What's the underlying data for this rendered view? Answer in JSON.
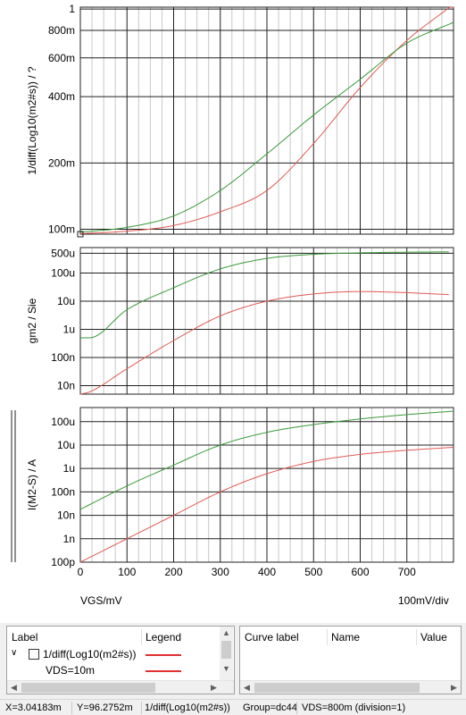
{
  "chart_data": [
    {
      "type": "line",
      "ylabel": "1/diff(Log10(m2#s)) / ?",
      "yscale": "log",
      "ylim": [
        0.095,
        1.02
      ],
      "yticks": [
        {
          "v": 1,
          "label": "1"
        },
        {
          "v": 0.8,
          "label": "800m"
        },
        {
          "v": 0.6,
          "label": "600m"
        },
        {
          "v": 0.4,
          "label": "400m"
        },
        {
          "v": 0.2,
          "label": "200m"
        },
        {
          "v": 0.1,
          "label": "100m"
        }
      ],
      "x": [
        0,
        100,
        200,
        300,
        400,
        500,
        600,
        700,
        800
      ],
      "series": [
        {
          "color": "#e05a52",
          "values": [
            0.0955,
            0.098,
            0.104,
            0.12,
            0.15,
            0.245,
            0.44,
            0.72,
            1.05
          ]
        },
        {
          "color": "#3a9a3a",
          "values": [
            0.097,
            0.102,
            0.115,
            0.15,
            0.22,
            0.33,
            0.48,
            0.7,
            0.87
          ]
        }
      ]
    },
    {
      "type": "line",
      "ylabel": "gm2 / Sie",
      "yscale": "log",
      "ylim": [
        5e-09,
        0.0008
      ],
      "yticks": [
        {
          "v": 0.0005,
          "label": "500u"
        },
        {
          "v": 0.0001,
          "label": "100u"
        },
        {
          "v": 1e-05,
          "label": "10u"
        },
        {
          "v": 1e-06,
          "label": "1u"
        },
        {
          "v": 1e-07,
          "label": "100n"
        },
        {
          "v": 1e-08,
          "label": "10n"
        }
      ],
      "x": [
        0,
        20,
        100,
        200,
        300,
        400,
        500,
        600,
        700,
        790
      ],
      "series": [
        {
          "color": "#e05a52",
          "values": [
            5e-09,
            6e-09,
            4e-08,
            4e-07,
            3e-06,
            1e-05,
            1.8e-05,
            2.2e-05,
            2e-05,
            1.7e-05
          ]
        },
        {
          "color": "#3a9a3a",
          "values": [
            5e-07,
            5e-07,
            5e-06,
            3e-05,
            0.00014,
            0.00033,
            0.00046,
            0.00052,
            0.00055,
            0.00056
          ]
        }
      ]
    },
    {
      "type": "line",
      "ylabel": "I(M2-S) / A",
      "yscale": "log",
      "ylim": [
        1e-10,
        0.0004
      ],
      "yticks": [
        {
          "v": 0.0001,
          "label": "100u"
        },
        {
          "v": 1e-05,
          "label": "10u"
        },
        {
          "v": 1e-06,
          "label": "1u"
        },
        {
          "v": 1e-07,
          "label": "100n"
        },
        {
          "v": 1e-08,
          "label": "10n"
        },
        {
          "v": 1e-09,
          "label": "1n"
        },
        {
          "v": 1e-10,
          "label": "100p"
        }
      ],
      "x": [
        0,
        100,
        200,
        300,
        400,
        500,
        600,
        700,
        800
      ],
      "series": [
        {
          "color": "#e05a52",
          "values": [
            1e-10,
            1e-09,
            1e-08,
            1e-07,
            6e-07,
            2e-06,
            4e-06,
            6e-06,
            8e-06
          ]
        },
        {
          "color": "#3a9a3a",
          "values": [
            1.8e-08,
            1.8e-07,
            1.4e-06,
            1e-05,
            3.5e-05,
            7.5e-05,
            0.00013,
            0.0002,
            0.00028
          ]
        }
      ]
    }
  ],
  "xaxis": {
    "xlim": [
      0,
      800
    ],
    "ticks": [
      "0",
      "100",
      "200",
      "300",
      "400",
      "500",
      "600",
      "700"
    ],
    "label": "VGS/mV",
    "div_label": "100mV/div"
  },
  "legend_panel": {
    "col_label": "Label",
    "col_legend": "Legend",
    "tree_item": "1/diff(Log10(m2#s))",
    "sub_item": "VDS=10m",
    "item_color": "#e03030"
  },
  "curve_panel": {
    "col_curve": "Curve label",
    "col_name": "Name",
    "col_value": "Value"
  },
  "status": {
    "x": "X=3.04183m",
    "y": "Y=96.2752m",
    "expr": "1/diff(Log10(m2#s))",
    "group": "Group=dc44",
    "vds": "VDS=800m (division=1)"
  }
}
